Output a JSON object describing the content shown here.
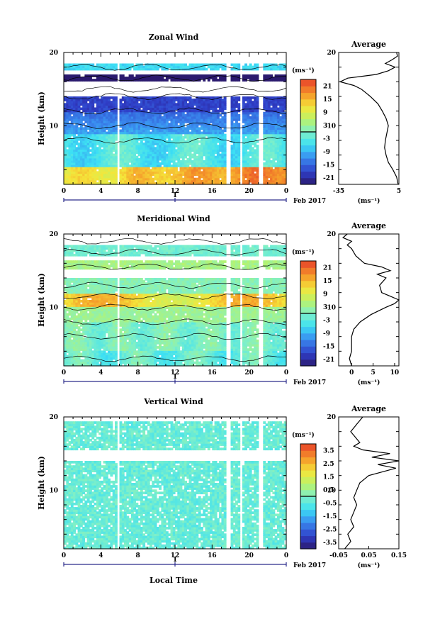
{
  "figure": {
    "xlabel": "Local Time",
    "date_label": "Feb 2017",
    "day_label": "1",
    "cb_unit": "(ms⁻¹)",
    "avg_unit": "(ms⁻¹)",
    "ylabel": "Height (km)"
  },
  "chart_data": [
    {
      "type": "heatmap",
      "title": "Zonal Wind",
      "xlabel": "Local Time",
      "ylabel": "Height (km)",
      "x_ticks": [
        "0",
        "4",
        "8",
        "12",
        "16",
        "20",
        "0"
      ],
      "xlim": [
        0,
        24
      ],
      "ylim": [
        2,
        20
      ],
      "y_ticks": [
        "20",
        "10"
      ],
      "colorbar": {
        "unit": "(ms⁻¹)",
        "range": [
          -24,
          24
        ],
        "ticks": [
          "21",
          "15",
          "9",
          "3",
          "-3",
          "-9",
          "-15",
          "-21"
        ],
        "ticks_values": [
          21,
          15,
          9,
          3,
          -3,
          -9,
          -15,
          -21
        ]
      },
      "gaps_hours": [
        5.8,
        17.6,
        19.0,
        21.2
      ],
      "profile_x": [
        [
          -2,
          8
        ],
        [
          -5,
          10
        ],
        [
          -8,
          12
        ],
        [
          -3,
          14
        ],
        [
          2,
          15
        ],
        [
          0,
          16.5
        ],
        [
          4,
          18
        ]
      ],
      "average": {
        "title": "Average",
        "unit": "(ms⁻¹)",
        "xlim": [
          -35,
          5
        ],
        "x_ticks": [
          "-35",
          "5"
        ],
        "y_ticks": [
          "20",
          "10"
        ],
        "height_km": [
          2,
          3,
          4,
          5,
          6,
          7,
          8,
          9,
          10,
          11,
          12,
          13,
          14,
          14.5,
          15,
          15.5,
          16,
          16.5,
          17,
          17.5,
          18,
          18.5,
          19,
          19.5,
          20
        ],
        "values": [
          4.5,
          3.5,
          1.0,
          -2.0,
          -3.5,
          -4.5,
          -4.0,
          -3.0,
          -2.0,
          -3.5,
          -6.0,
          -9.0,
          -14.0,
          -17.0,
          -20.0,
          -25.0,
          -34.0,
          -29.0,
          -10.0,
          -2.0,
          2.5,
          -4.0,
          0.5,
          4.0,
          3.5
        ]
      }
    },
    {
      "type": "heatmap",
      "title": "Meridional Wind",
      "xlabel": "Local Time",
      "ylabel": "Height (km)",
      "x_ticks": [
        "0",
        "4",
        "8",
        "12",
        "16",
        "20",
        "0"
      ],
      "xlim": [
        0,
        24
      ],
      "ylim": [
        2,
        20
      ],
      "y_ticks": [
        "20",
        "10"
      ],
      "colorbar": {
        "unit": "(ms⁻¹)",
        "range": [
          -24,
          24
        ],
        "ticks": [
          "21",
          "15",
          "9",
          "3",
          "-3",
          "-9",
          "-15",
          "-21"
        ],
        "ticks_values": [
          21,
          15,
          9,
          3,
          -3,
          -9,
          -15,
          -21
        ]
      },
      "gaps_hours": [
        5.8,
        17.6,
        19.0,
        21.2
      ],
      "profile_x": [
        [
          -1,
          3
        ],
        [
          -2,
          6
        ],
        [
          0,
          8
        ],
        [
          8,
          10
        ],
        [
          12,
          11.5
        ],
        [
          4,
          13
        ],
        [
          -2,
          15.5
        ],
        [
          0,
          17.5
        ],
        [
          0,
          19
        ]
      ],
      "average": {
        "title": "Average",
        "unit": "(ms⁻¹)",
        "xlim": [
          -3,
          11
        ],
        "x_ticks": [
          "0",
          "5",
          "10"
        ],
        "y_ticks": [
          "20",
          "10"
        ],
        "height_km": [
          2,
          3,
          4,
          5,
          6,
          7,
          8,
          9,
          10,
          10.5,
          11,
          11.5,
          12,
          13,
          14,
          14.5,
          15,
          15.5,
          16,
          17,
          18,
          18.5,
          19,
          19.5,
          20
        ],
        "values": [
          0.0,
          -0.5,
          0.0,
          0.0,
          0.0,
          0.5,
          2.0,
          4.5,
          8.0,
          10.0,
          11.0,
          9.0,
          7.0,
          6.5,
          8.0,
          6.0,
          9.0,
          7.0,
          3.0,
          1.0,
          0.0,
          -1.0,
          0.0,
          -2.0,
          -1.0
        ]
      }
    },
    {
      "type": "heatmap",
      "title": "Vertical Wind",
      "xlabel": "Local Time",
      "ylabel": "Height (km)",
      "x_ticks": [
        "0",
        "4",
        "8",
        "12",
        "16",
        "20",
        "0"
      ],
      "xlim": [
        0,
        24
      ],
      "ylim": [
        2,
        20
      ],
      "y_ticks": [
        "20",
        "10"
      ],
      "colorbar": {
        "unit": "(ms⁻¹)",
        "range": [
          -4,
          4
        ],
        "ticks": [
          "3.5",
          "2.5",
          "1.5",
          "0.5",
          "-0.5",
          "-1.5",
          "-2.5",
          "-3.5"
        ],
        "ticks_values": [
          3.5,
          2.5,
          1.5,
          0.5,
          -0.5,
          -1.5,
          -2.5,
          -3.5
        ]
      },
      "gaps_hours": [
        5.8,
        17.6,
        19.0,
        21.2
      ],
      "profile_x": [],
      "average": {
        "title": "Average",
        "unit": "(ms⁻¹)",
        "xlim": [
          -0.05,
          0.15
        ],
        "x_ticks": [
          "-0.05",
          "0.05",
          "0.15"
        ],
        "y_ticks": [
          "20",
          "10"
        ],
        "height_km": [
          2,
          3,
          4,
          5,
          6,
          7,
          8,
          9,
          10,
          11,
          12,
          13,
          13.5,
          14,
          14.5,
          15,
          15.5,
          16,
          16.5,
          17,
          18,
          19,
          20
        ],
        "values": [
          -0.03,
          -0.01,
          -0.02,
          0.0,
          -0.01,
          0.0,
          0.01,
          0.0,
          0.01,
          0.02,
          0.05,
          0.14,
          0.08,
          0.15,
          0.06,
          0.12,
          0.03,
          0.0,
          0.02,
          0.01,
          -0.01,
          0.01,
          0.03
        ]
      }
    }
  ]
}
